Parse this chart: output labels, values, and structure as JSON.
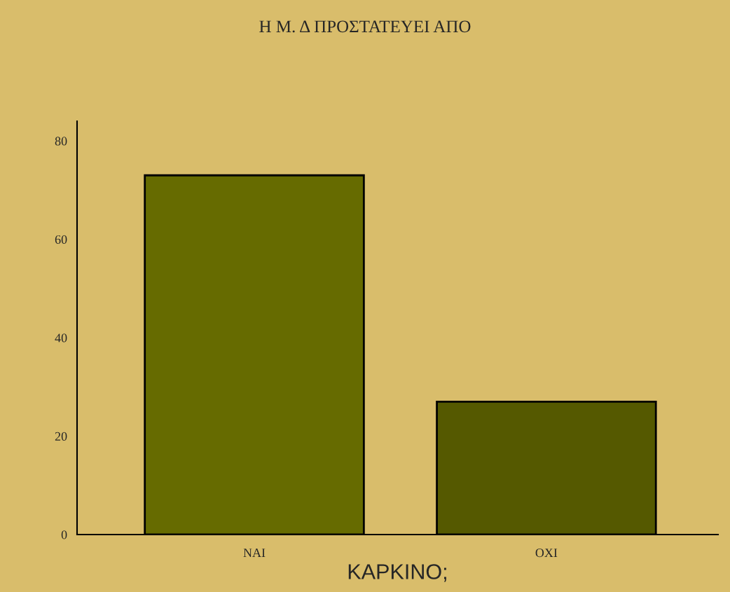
{
  "chart_data": {
    "type": "bar",
    "title": "Η Μ. Δ ΠΡΟΣΤΑΤΕΥΕΙ ΑΠΟ",
    "xlabel": "ΚΑΡΚΙΝΟ;",
    "categories": [
      "ΝΑΙ",
      "ΟΧΙ"
    ],
    "values": [
      73,
      27
    ],
    "colors": [
      "#666b00",
      "#555900"
    ],
    "ylim": [
      0,
      84
    ],
    "yticks": [
      0,
      20,
      40,
      60,
      80
    ],
    "grid": false,
    "legend": false
  }
}
